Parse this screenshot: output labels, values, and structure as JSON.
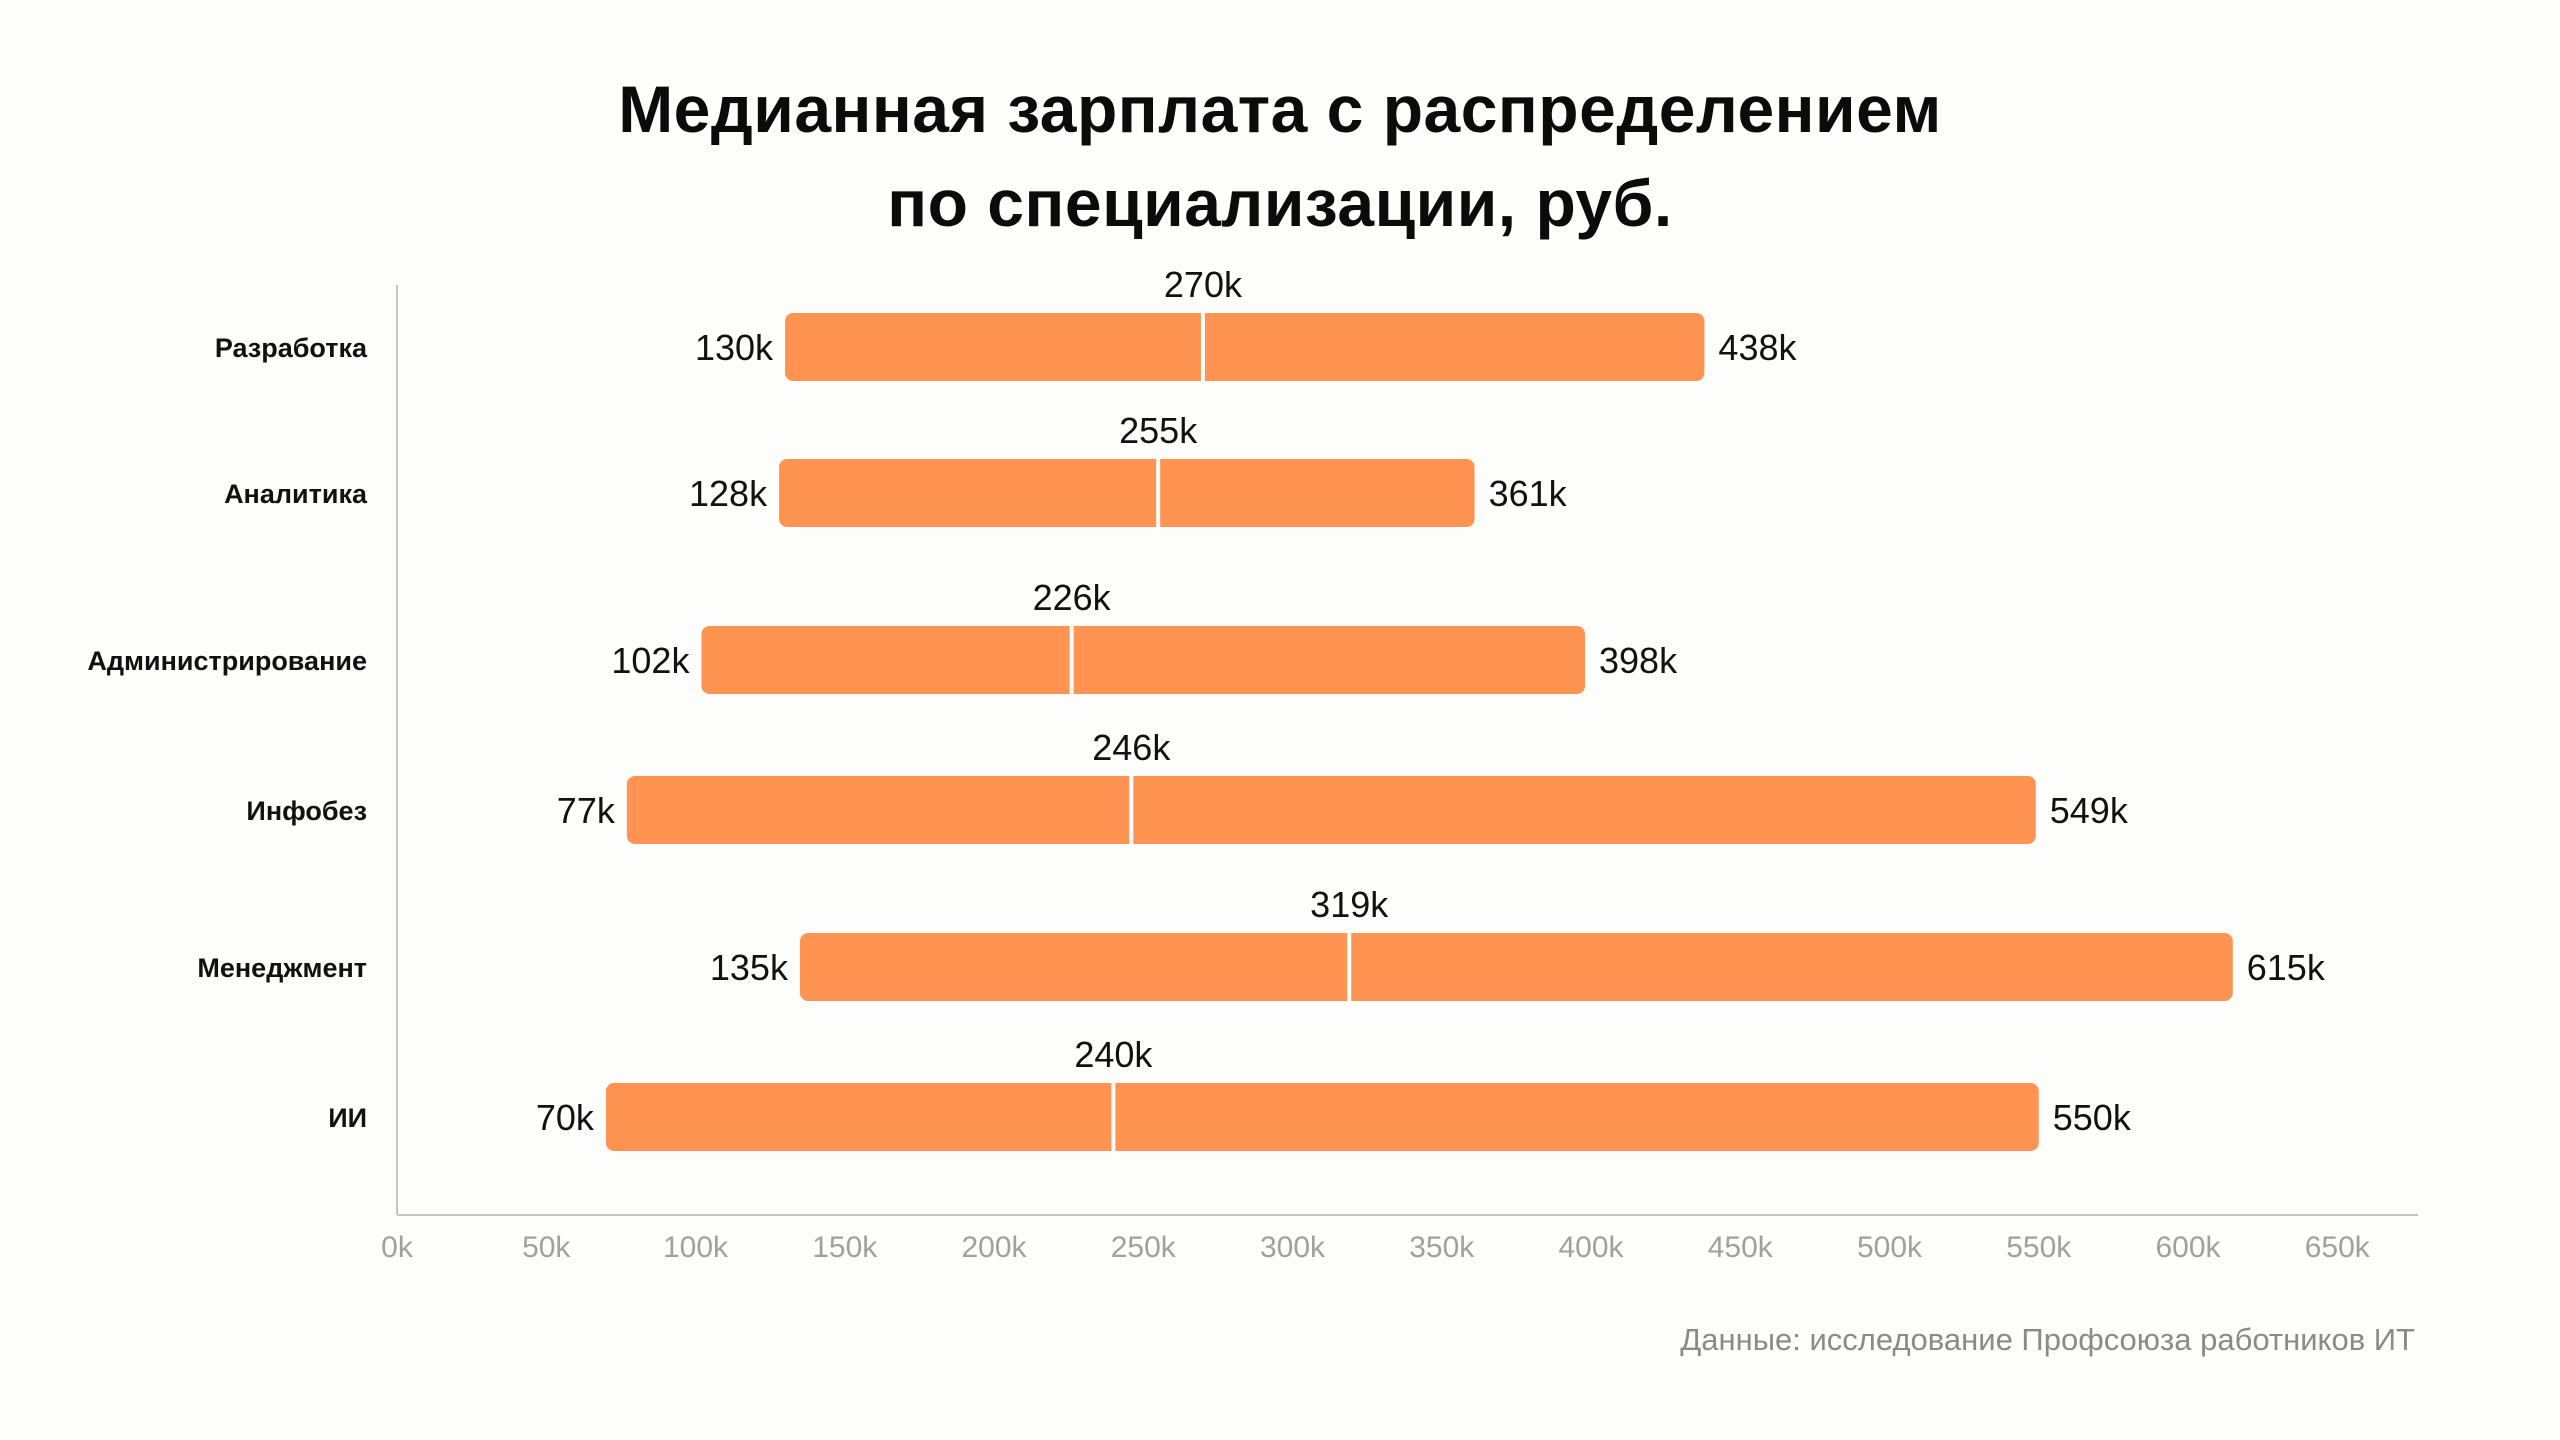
{
  "chart_data": {
    "type": "bar",
    "subtype": "range-bar-with-median",
    "title_lines": [
      "Медианная зарплата с распределением",
      "по специализации, руб."
    ],
    "categories": [
      "Разработка",
      "Аналитика",
      "Администрирование",
      "Инфобез",
      "Менеджмент",
      "ИИ"
    ],
    "series": [
      {
        "name": "",
        "min": [
          130,
          128,
          102,
          77,
          135,
          70
        ],
        "median": [
          270,
          255,
          226,
          246,
          319,
          240
        ],
        "max": [
          438,
          361,
          398,
          549,
          615,
          550
        ]
      }
    ],
    "value_labels": {
      "min": [
        "130k",
        "128k",
        "102k",
        "77k",
        "135k",
        "70k"
      ],
      "median": [
        "270k",
        "255k",
        "226k",
        "246k",
        "319k",
        "240k"
      ],
      "max": [
        "438k",
        "361k",
        "398k",
        "549k",
        "615k",
        "550k"
      ]
    },
    "x_ticks": [
      0,
      50,
      100,
      150,
      200,
      250,
      300,
      350,
      400,
      450,
      500,
      550,
      600,
      650
    ],
    "x_tick_labels": [
      "0k",
      "50k",
      "100k",
      "150k",
      "200k",
      "250k",
      "300k",
      "350k",
      "400k",
      "450k",
      "500k",
      "550k",
      "600k",
      "650k"
    ],
    "xlim": [
      0,
      680
    ],
    "grid": false,
    "legend": "none",
    "bar_color": "#ff9452",
    "median_line_color": "#ffffff",
    "axis_color": "#c4c4c4"
  },
  "source_note": "Данные: исследование Профсоюза работников ИТ"
}
